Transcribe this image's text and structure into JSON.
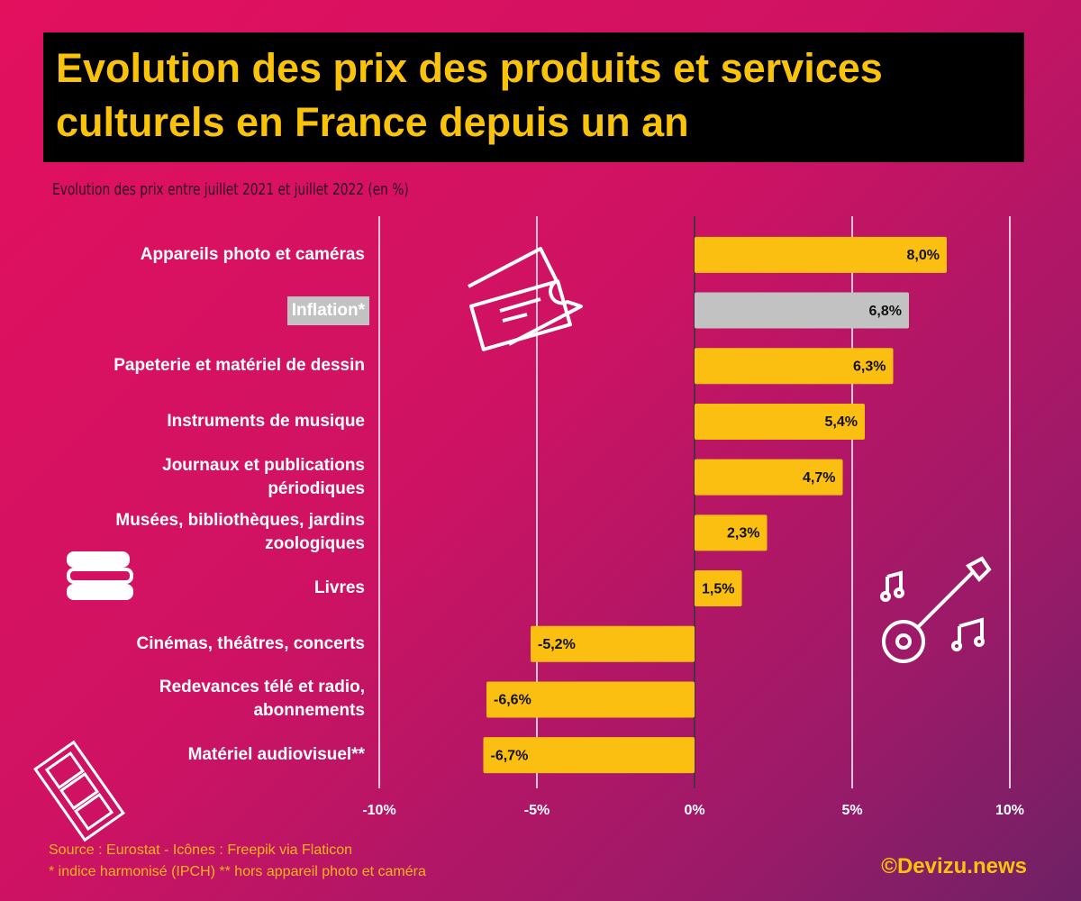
{
  "chart_data": {
    "type": "hbar",
    "title": "Evolution des prix des produits et services culturels en France depuis un an",
    "subtitle": "Evolution des prix entre juillet 2021 et juillet 2022 (en %)",
    "categories": [
      "Appareils photo et caméras",
      "Inflation*",
      "Papeterie et matériel de dessin",
      "Instruments de musique",
      "Journaux et publications périodiques",
      "Musées, bibliothèques, jardins zoologiques",
      "Livres",
      "Cinémas, théâtres, concerts",
      "Redevances télé et radio, abonnements",
      "Matériel audiovisuel**"
    ],
    "values": [
      8.0,
      6.8,
      6.3,
      5.4,
      4.7,
      2.3,
      1.5,
      -5.2,
      -6.6,
      -6.7
    ],
    "value_labels": [
      "8,0%",
      "6,8%",
      "6,3%",
      "5,4%",
      "4,7%",
      "2,3%",
      "1,5%",
      "-5,2%",
      "-6,6%",
      "-6,7%"
    ],
    "colors": [
      "#fbbf12",
      "#c2c2c2",
      "#fbbf12",
      "#fbbf12",
      "#fbbf12",
      "#fbbf12",
      "#fbbf12",
      "#fbbf12",
      "#fbbf12",
      "#fbbf12"
    ],
    "xlim": [
      -10,
      10
    ],
    "xticks": [
      {
        "value": -10,
        "label": "-10%"
      },
      {
        "value": -5,
        "label": "-5%"
      },
      {
        "value": 0,
        "label": "0%"
      },
      {
        "value": 5,
        "label": "5%"
      },
      {
        "value": 10,
        "label": "10%"
      }
    ],
    "grid": true,
    "source": "Source : Eurostat - Icônes : Freepik via Flaticon",
    "note": "* indice harmonisé (IPCH) ** hors appareil photo et caméra",
    "credit": "©Devizu.news"
  }
}
